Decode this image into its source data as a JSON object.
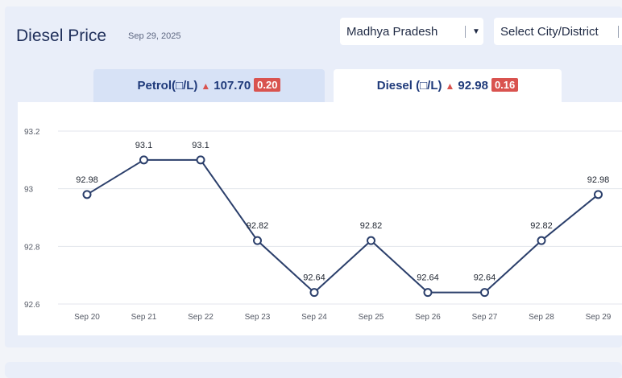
{
  "header": {
    "title": "Diesel Price",
    "date": "Sep 29, 2025"
  },
  "filters": {
    "state_value": "Madhya Pradesh",
    "city_placeholder": "Select City/District"
  },
  "tabs": [
    {
      "label": "Petrol(□/L)",
      "price": "107.70",
      "change": "0.20",
      "active": false
    },
    {
      "label": "Diesel (□/L)",
      "price": "92.98",
      "change": "0.16",
      "active": true
    }
  ],
  "colors": {
    "line": "#2b3f6b",
    "up_badge": "#d9534f",
    "active_tab": "#ffffff",
    "inactive_tab": "#d7e2f6"
  },
  "chart_data": {
    "type": "line",
    "categories": [
      "Sep 20",
      "Sep 21",
      "Sep 22",
      "Sep 23",
      "Sep 24",
      "Sep 25",
      "Sep 26",
      "Sep 27",
      "Sep 28",
      "Sep 29"
    ],
    "values": [
      92.98,
      93.1,
      93.1,
      92.82,
      92.64,
      92.82,
      92.64,
      92.64,
      92.82,
      92.98
    ],
    "value_labels": [
      "92.98",
      "93.1",
      "93.1",
      "92.82",
      "92.64",
      "92.82",
      "92.64",
      "92.64",
      "92.82",
      "92.98"
    ],
    "yticks": [
      "93.2",
      "93",
      "92.8",
      "92.6"
    ],
    "ytick_values": [
      93.2,
      93.0,
      92.8,
      92.6
    ],
    "ylim": [
      92.6,
      93.2
    ],
    "grid": true
  }
}
